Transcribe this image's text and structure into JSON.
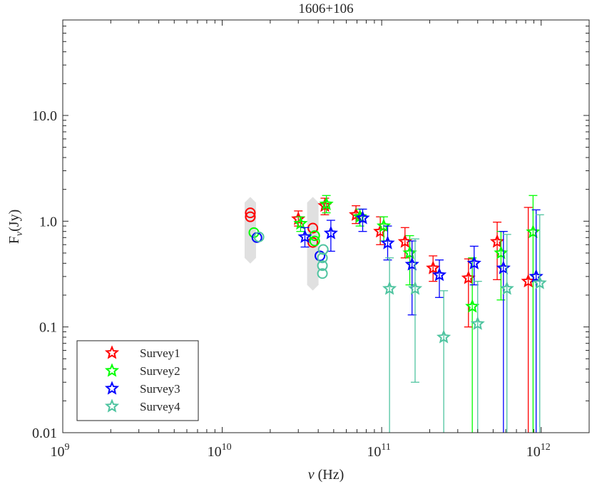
{
  "chart_data": {
    "type": "scatter",
    "title": "1606+106",
    "xlabel": "ν (Hz)",
    "ylabel": "Fν (Jy)",
    "ylabel_main": "F",
    "ylabel_sub": "ν",
    "ylabel_unit": "(Jy)",
    "xlabel_sym": "ν",
    "xlabel_unit": "(Hz)",
    "xscale": "log",
    "yscale": "log",
    "xlim": [
      1000000000.0,
      2000000000000.0
    ],
    "ylim": [
      0.01,
      80
    ],
    "x_ticks": [
      {
        "base": "10",
        "exp": "9",
        "value": 1000000000.0
      },
      {
        "base": "10",
        "exp": "10",
        "value": 10000000000.0
      },
      {
        "base": "10",
        "exp": "11",
        "value": 100000000000.0
      },
      {
        "base": "10",
        "exp": "12",
        "value": 1000000000000.0
      }
    ],
    "y_ticks": [
      {
        "label": "0.01",
        "value": 0.01
      },
      {
        "label": "0.1",
        "value": 0.1
      },
      {
        "label": "1.0",
        "value": 1
      },
      {
        "label": "10.0",
        "value": 10
      }
    ],
    "legend_position": "bottom-left",
    "historical_ranges": [
      {
        "x": 15000000000.0,
        "low": 0.45,
        "high": 1.5
      },
      {
        "x": 37000000000.0,
        "low": 0.25,
        "high": 1.5
      }
    ],
    "series": [
      {
        "name": "Survey1",
        "color": "#ff0000",
        "circles": [
          {
            "x": 15000000000.0,
            "y": 1.2
          },
          {
            "x": 15000000000.0,
            "y": 1.1
          },
          {
            "x": 37000000000.0,
            "y": 0.86
          },
          {
            "x": 37000000000.0,
            "y": 0.63
          }
        ],
        "points": [
          {
            "x": 30000000000.0,
            "y": 1.05,
            "lo": 0.9,
            "hi": 1.25
          },
          {
            "x": 44000000000.0,
            "y": 1.4,
            "lo": 1.15,
            "hi": 1.65
          },
          {
            "x": 69000000000.0,
            "y": 1.15,
            "lo": 0.95,
            "hi": 1.4
          },
          {
            "x": 98000000000.0,
            "y": 0.8,
            "lo": 0.6,
            "hi": 1.1
          },
          {
            "x": 140000000000.0,
            "y": 0.64,
            "lo": 0.45,
            "hi": 0.87
          },
          {
            "x": 210000000000.0,
            "y": 0.36,
            "lo": 0.27,
            "hi": 0.47
          },
          {
            "x": 350000000000.0,
            "y": 0.29,
            "lo": 0.1,
            "hi": 0.44
          },
          {
            "x": 530000000000.0,
            "y": 0.64,
            "lo": 0.28,
            "hi": 0.98
          },
          {
            "x": 830000000000.0,
            "y": 0.27,
            "lo": 0.01,
            "hi": 1.35
          }
        ]
      },
      {
        "name": "Survey2",
        "color": "#00ff00",
        "circles": [
          {
            "x": 15800000000.0,
            "y": 0.78
          },
          {
            "x": 38000000000.0,
            "y": 0.73
          },
          {
            "x": 38000000000.0,
            "y": 0.65
          }
        ],
        "points": [
          {
            "x": 31000000000.0,
            "y": 0.95,
            "lo": 0.8,
            "hi": 1.1
          },
          {
            "x": 45000000000.0,
            "y": 1.45,
            "lo": 1.2,
            "hi": 1.75
          },
          {
            "x": 73000000000.0,
            "y": 1.1,
            "lo": 0.9,
            "hi": 1.3
          },
          {
            "x": 103000000000.0,
            "y": 0.9,
            "lo": 0.65,
            "hi": 1.1
          },
          {
            "x": 150000000000.0,
            "y": 0.5,
            "lo": 0.25,
            "hi": 0.73
          },
          {
            "x": 370000000000.0,
            "y": 0.156,
            "lo": 0.01,
            "hi": 0.45
          },
          {
            "x": 560000000000.0,
            "y": 0.5,
            "lo": 0.18,
            "hi": 0.8
          },
          {
            "x": 890000000000.0,
            "y": 0.79,
            "lo": 0.01,
            "hi": 1.75
          }
        ]
      },
      {
        "name": "Survey3",
        "color": "#0000ff",
        "circles": [
          {
            "x": 16500000000.0,
            "y": 0.7
          },
          {
            "x": 41000000000.0,
            "y": 0.47
          }
        ],
        "points": [
          {
            "x": 33000000000.0,
            "y": 0.71,
            "lo": 0.57,
            "hi": 0.87
          },
          {
            "x": 48000000000.0,
            "y": 0.77,
            "lo": 0.52,
            "hi": 1.02
          },
          {
            "x": 76000000000.0,
            "y": 1.07,
            "lo": 0.8,
            "hi": 1.3
          },
          {
            "x": 109000000000.0,
            "y": 0.62,
            "lo": 0.43,
            "hi": 0.9
          },
          {
            "x": 155000000000.0,
            "y": 0.39,
            "lo": 0.13,
            "hi": 0.65
          },
          {
            "x": 230000000000.0,
            "y": 0.31,
            "lo": 0.19,
            "hi": 0.43
          },
          {
            "x": 380000000000.0,
            "y": 0.4,
            "lo": 0.25,
            "hi": 0.58
          },
          {
            "x": 580000000000.0,
            "y": 0.36,
            "lo": 0.01,
            "hi": 0.8
          },
          {
            "x": 930000000000.0,
            "y": 0.3,
            "lo": 0.01,
            "hi": 1.28
          }
        ]
      },
      {
        "name": "Survey4",
        "color": "#4fc4a0",
        "circles": [
          {
            "x": 17000000000.0,
            "y": 0.71
          },
          {
            "x": 43000000000.0,
            "y": 0.54
          },
          {
            "x": 42500000000.0,
            "y": 0.45
          },
          {
            "x": 42500000000.0,
            "y": 0.38
          },
          {
            "x": 42500000000.0,
            "y": 0.32
          }
        ],
        "points": [
          {
            "x": 112000000000.0,
            "y": 0.23,
            "lo": 0.01,
            "hi": 0.45
          },
          {
            "x": 162000000000.0,
            "y": 0.23,
            "lo": 0.03,
            "hi": 0.68
          },
          {
            "x": 245000000000.0,
            "y": 0.08,
            "lo": 0.01,
            "hi": 0.22
          },
          {
            "x": 400000000000.0,
            "y": 0.107,
            "lo": 0.01,
            "hi": 0.27
          },
          {
            "x": 610000000000.0,
            "y": 0.23,
            "lo": 0.01,
            "hi": 0.75
          },
          {
            "x": 980000000000.0,
            "y": 0.26,
            "lo": 0.01,
            "hi": 1.15
          }
        ]
      }
    ]
  }
}
